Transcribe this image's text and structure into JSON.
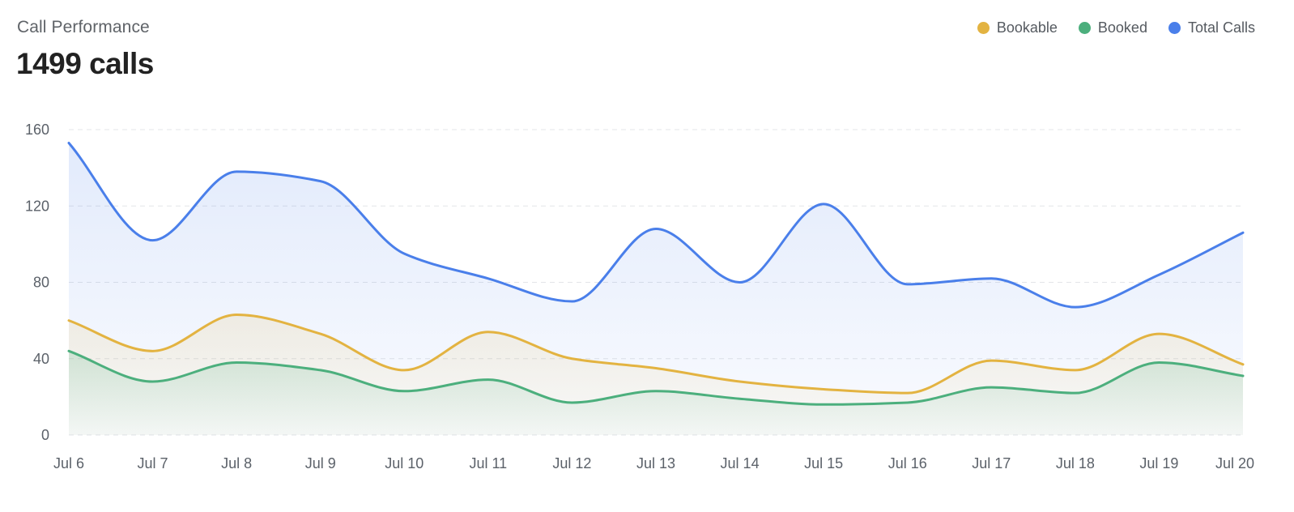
{
  "header": {
    "title": "Call Performance",
    "total": "1499 calls"
  },
  "legend": [
    {
      "label": "Bookable",
      "color": "#E3B341"
    },
    {
      "label": "Booked",
      "color": "#4CAF7D"
    },
    {
      "label": "Total Calls",
      "color": "#4A7FEA"
    }
  ],
  "chart_data": {
    "type": "area",
    "categories": [
      "Jul 6",
      "Jul 7",
      "Jul 8",
      "Jul 9",
      "Jul 10",
      "Jul 11",
      "Jul 12",
      "Jul 13",
      "Jul 14",
      "Jul 15",
      "Jul 16",
      "Jul 17",
      "Jul 18",
      "Jul 19",
      "Jul 20"
    ],
    "series": [
      {
        "name": "Total Calls",
        "color": "#4A7FEA",
        "values": [
          153,
          102,
          138,
          133,
          95,
          82,
          70,
          108,
          80,
          121,
          79,
          82,
          67,
          84,
          106
        ]
      },
      {
        "name": "Bookable",
        "color": "#E3B341",
        "values": [
          60,
          44,
          63,
          53,
          34,
          54,
          40,
          35,
          28,
          24,
          22,
          39,
          34,
          53,
          37
        ]
      },
      {
        "name": "Booked",
        "color": "#4CAF7D",
        "values": [
          44,
          28,
          38,
          34,
          23,
          29,
          17,
          23,
          19,
          16,
          17,
          25,
          22,
          38,
          31
        ]
      }
    ],
    "y_ticks": [
      "0",
      "40",
      "80",
      "120",
      "160"
    ],
    "ylim": [
      0,
      160
    ],
    "grid": true,
    "legend_position": "top-right"
  }
}
